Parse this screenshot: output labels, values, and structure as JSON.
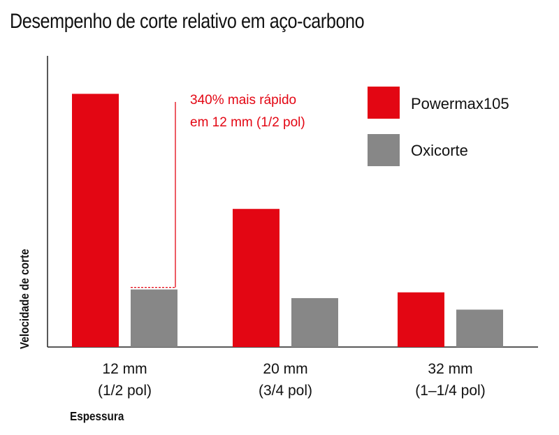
{
  "chart_data": {
    "type": "bar",
    "title": "Desempenho de corte relativo em aço-carbono",
    "xlabel": "Espessura",
    "ylabel": "Velocidade de corte",
    "categories": [
      [
        "12 mm",
        "(1/2 pol)"
      ],
      [
        "20 mm",
        "(3/4 pol)"
      ],
      [
        "32 mm",
        "(1–1/4 pol)"
      ]
    ],
    "series": [
      {
        "name": "Powermax105",
        "color": "#e30613",
        "values": [
          4.4,
          2.4,
          0.95
        ]
      },
      {
        "name": "Oxicorte",
        "color": "#878787",
        "values": [
          1.0,
          0.85,
          0.65
        ]
      }
    ],
    "ylim": [
      0,
      5.06
    ],
    "y_ticks_shown": false,
    "grid": false,
    "legend_position": "top-right",
    "annotation": {
      "lines": [
        "340% mais rápido",
        "em 12 mm (1/2 pol)"
      ],
      "category_index": 0,
      "from_series": 1,
      "to_series": 0,
      "color": "#e30613"
    }
  }
}
